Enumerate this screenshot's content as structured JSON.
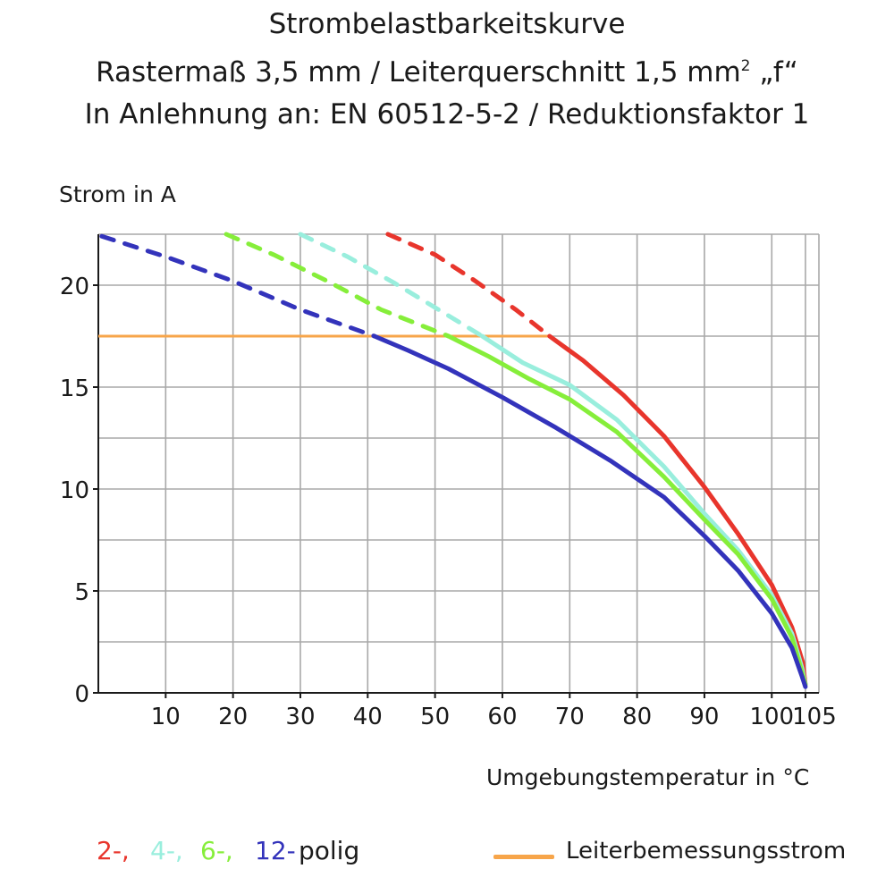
{
  "title": {
    "line1": "Strombelastbarkeitskurve",
    "line2_prefix": "Rastermaß 3,5 mm / Leiterquerschnitt 1,5 mm",
    "line2_sup": "2",
    "line2_suffix": " „f“",
    "line3": "In Anlehnung an: EN 60512-5-2 / Reduktionsfaktor 1"
  },
  "colors": {
    "red": "#e8352c",
    "cyan": "#99eedd",
    "green": "#86ee3a",
    "blue": "#3333bb",
    "orange": "#f7a54a",
    "grid": "#a8a8a8",
    "axis": "#1a1a1a"
  },
  "legend": {
    "red_label": "2-,",
    "cyan_label": "4-,",
    "green_label": "6-,",
    "blue_label": "12-",
    "suffix": "polig",
    "rated_label": "Leiterbemessungsstrom"
  },
  "chart_data": {
    "type": "line",
    "ylabel": "Strom in A",
    "xlabel": "Umgebungstemperatur in  °C",
    "xlim": [
      0,
      107
    ],
    "ylim": [
      0,
      22.5
    ],
    "x_ticks": [
      10,
      20,
      30,
      40,
      50,
      60,
      70,
      80,
      90,
      100,
      105
    ],
    "y_ticks": [
      0,
      5,
      10,
      15,
      20
    ],
    "x_grid": [
      10,
      20,
      30,
      40,
      50,
      60,
      70,
      80,
      90,
      100,
      105
    ],
    "y_grid": [
      2.5,
      5,
      7.5,
      10,
      12.5,
      15,
      17.5,
      20
    ],
    "rated_current": 17.5,
    "rated_current_x_range": [
      0,
      67
    ],
    "series": [
      {
        "name": "2-polig",
        "color_key": "red",
        "dashed": [
          [
            43,
            22.5
          ],
          [
            50,
            21.5
          ],
          [
            56,
            20.2
          ],
          [
            62,
            18.8
          ],
          [
            67,
            17.5
          ]
        ],
        "solid": [
          [
            67,
            17.5
          ],
          [
            72,
            16.3
          ],
          [
            78,
            14.6
          ],
          [
            84,
            12.6
          ],
          [
            90,
            10.1
          ],
          [
            95,
            7.8
          ],
          [
            100,
            5.3
          ],
          [
            103,
            3.2
          ],
          [
            104.6,
            1.5
          ],
          [
            105,
            0.4
          ]
        ]
      },
      {
        "name": "4-polig",
        "color_key": "cyan",
        "dashed": [
          [
            30,
            22.5
          ],
          [
            37,
            21.4
          ],
          [
            44,
            20.1
          ],
          [
            51,
            18.7
          ],
          [
            57,
            17.5
          ]
        ],
        "solid": [
          [
            57,
            17.5
          ],
          [
            63,
            16.2
          ],
          [
            70,
            15.1
          ],
          [
            77,
            13.4
          ],
          [
            84,
            11.1
          ],
          [
            90,
            8.8
          ],
          [
            95,
            7.0
          ],
          [
            100,
            4.8
          ],
          [
            103,
            2.9
          ],
          [
            104.5,
            1.2
          ],
          [
            105,
            0.4
          ]
        ]
      },
      {
        "name": "6-polig",
        "color_key": "green",
        "dashed": [
          [
            19,
            22.5
          ],
          [
            26,
            21.5
          ],
          [
            34,
            20.2
          ],
          [
            42,
            18.8
          ],
          [
            52,
            17.5
          ]
        ],
        "solid": [
          [
            52,
            17.5
          ],
          [
            58,
            16.5
          ],
          [
            64,
            15.4
          ],
          [
            70,
            14.4
          ],
          [
            77,
            12.8
          ],
          [
            84,
            10.6
          ],
          [
            90,
            8.5
          ],
          [
            95,
            6.8
          ],
          [
            100,
            4.6
          ],
          [
            103,
            2.7
          ],
          [
            104.5,
            1.0
          ],
          [
            105,
            0.4
          ]
        ]
      },
      {
        "name": "12-polig",
        "color_key": "blue",
        "dashed": [
          [
            0.5,
            22.4
          ],
          [
            10,
            21.4
          ],
          [
            20,
            20.2
          ],
          [
            30,
            18.8
          ],
          [
            41,
            17.5
          ]
        ],
        "solid": [
          [
            41,
            17.5
          ],
          [
            46,
            16.8
          ],
          [
            52,
            15.9
          ],
          [
            60,
            14.5
          ],
          [
            68,
            13.0
          ],
          [
            76,
            11.4
          ],
          [
            84,
            9.6
          ],
          [
            90,
            7.7
          ],
          [
            95,
            6.0
          ],
          [
            100,
            3.9
          ],
          [
            103,
            2.2
          ],
          [
            104.5,
            0.8
          ],
          [
            105,
            0.3
          ]
        ]
      }
    ]
  }
}
